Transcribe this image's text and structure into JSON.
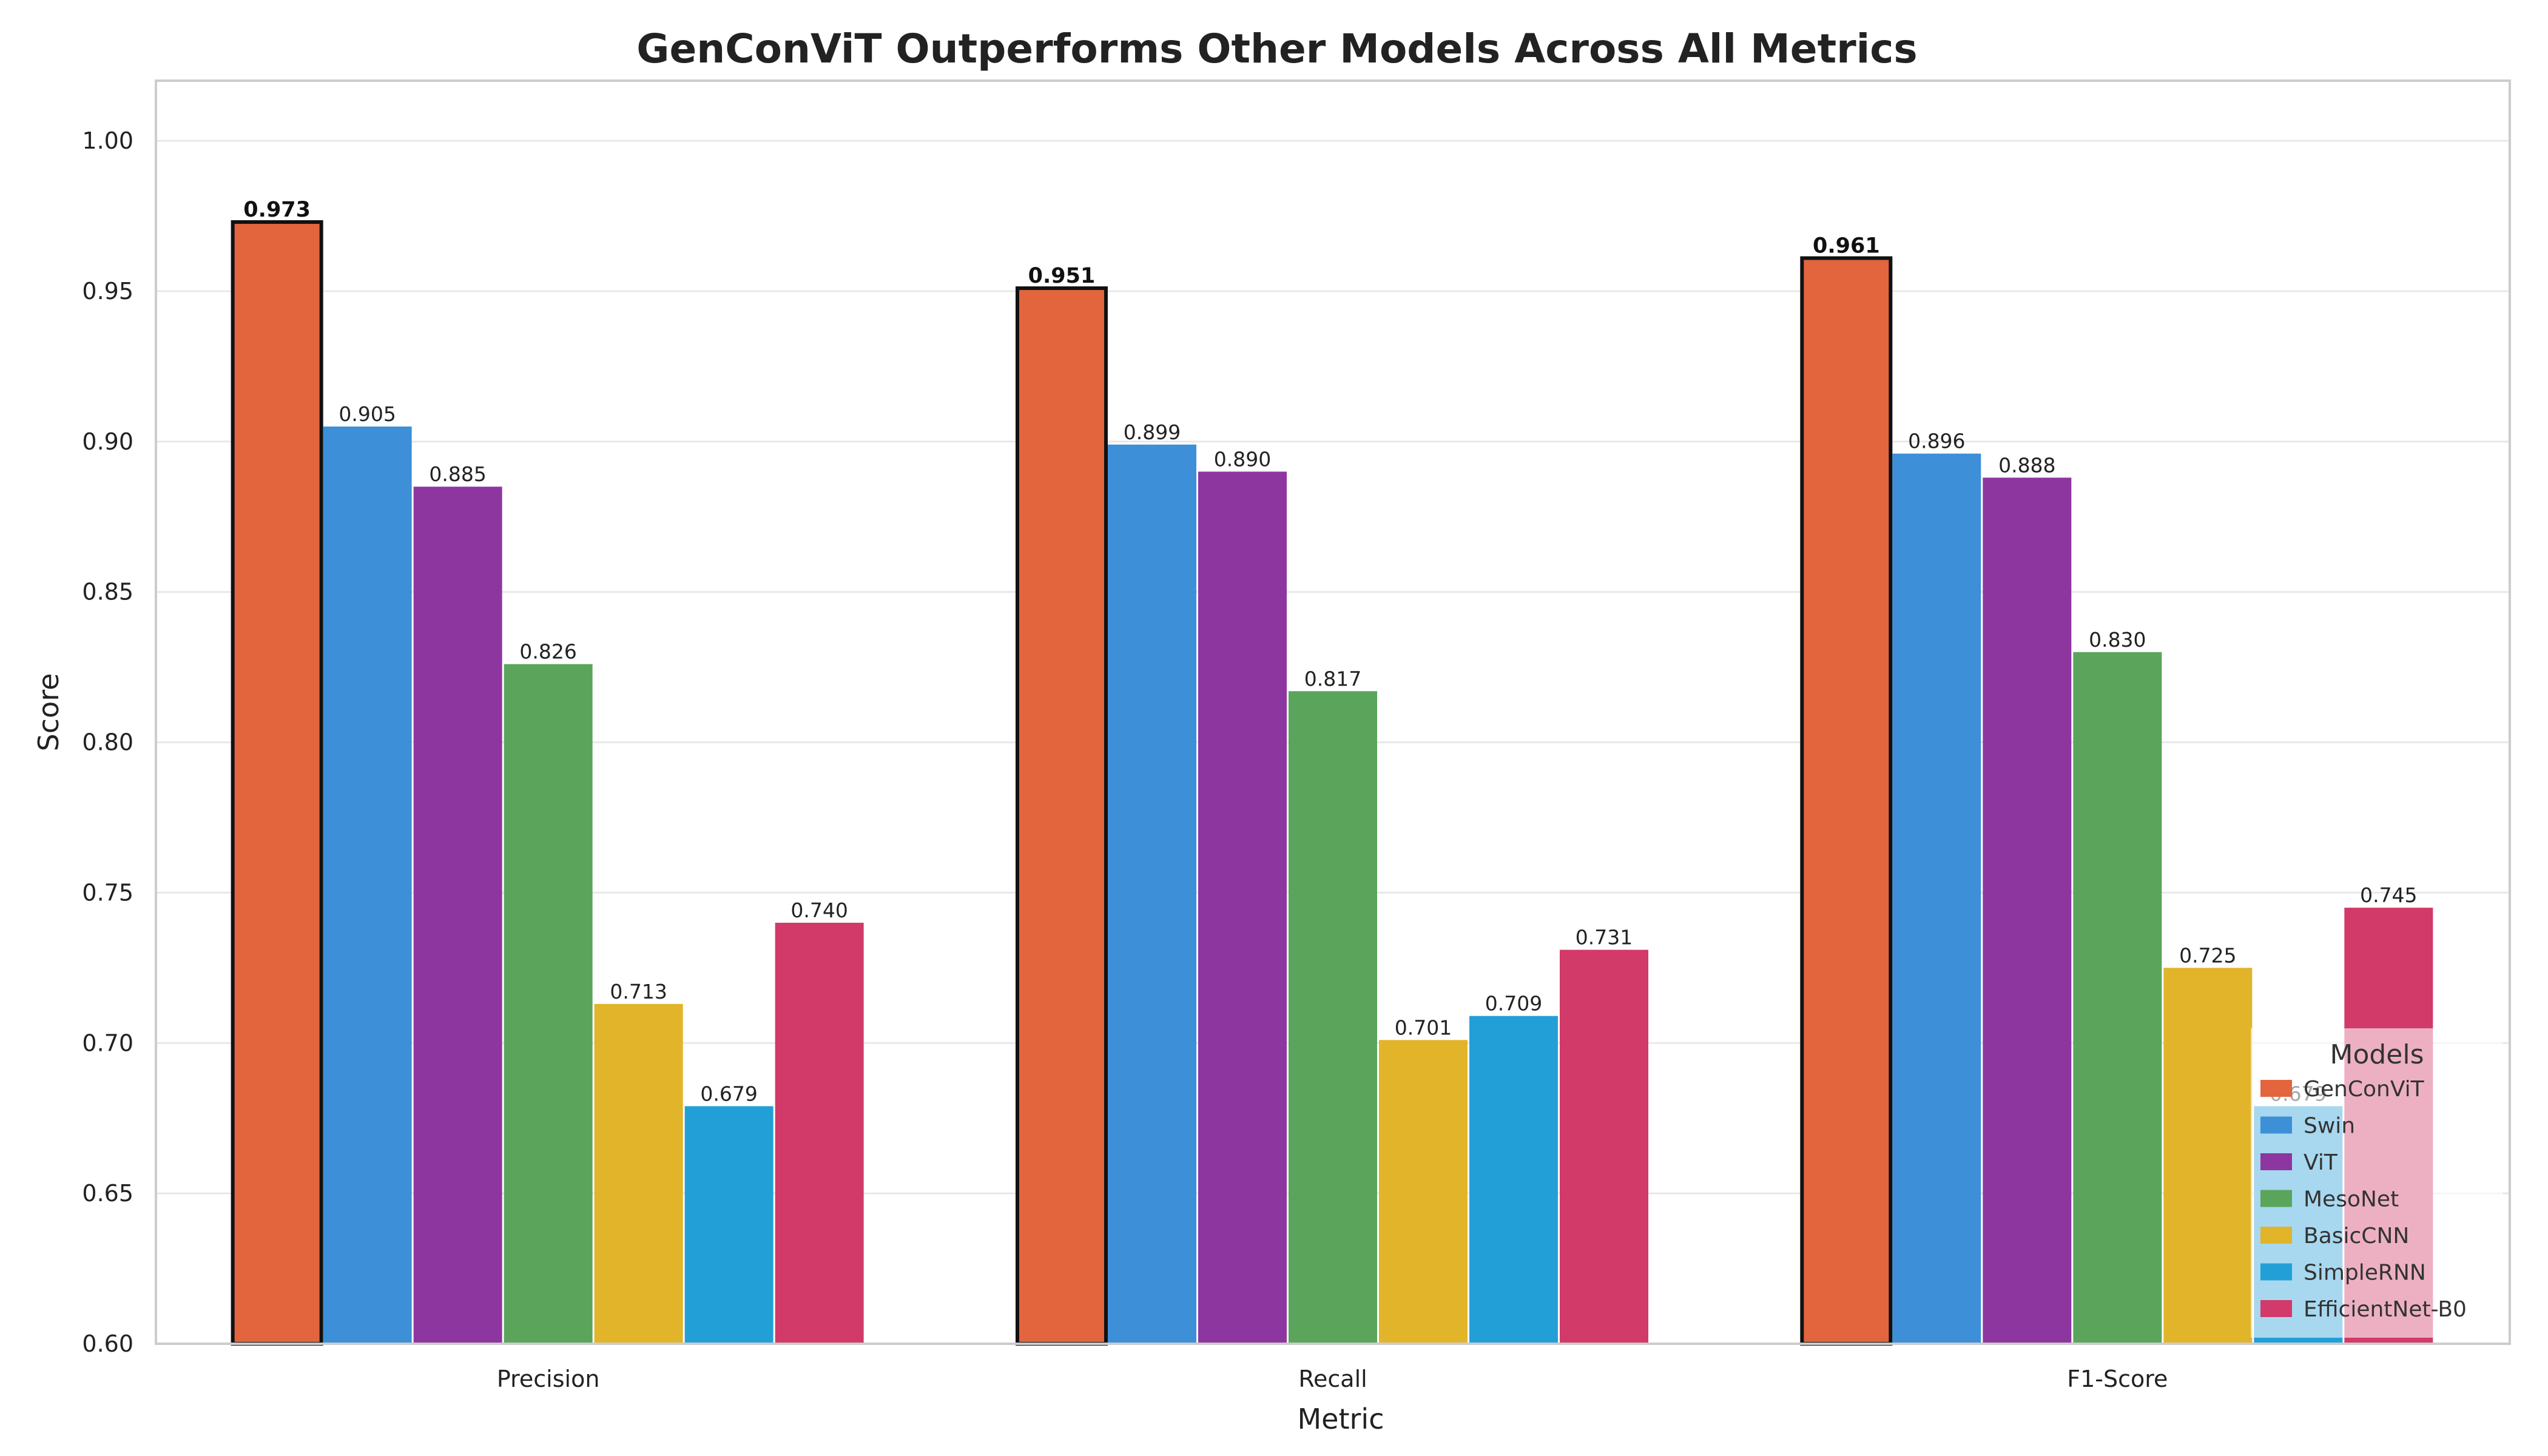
{
  "chart_data": {
    "type": "bar",
    "title": "GenConViT Outperforms Other Models Across All Metrics",
    "xlabel": "Metric",
    "ylabel": "Score",
    "ylim": [
      0.6,
      1.02
    ],
    "yticks": [
      "0.60",
      "0.65",
      "0.70",
      "0.75",
      "0.80",
      "0.85",
      "0.90",
      "0.95",
      "1.00"
    ],
    "grid": true,
    "categories": [
      "Precision",
      "Recall",
      "F1-Score"
    ],
    "series": [
      {
        "name": "GenConViT",
        "color": "#e2653e",
        "highlight": true,
        "values": [
          0.973,
          0.951,
          0.961
        ],
        "labels": [
          "0.973",
          "0.951",
          "0.961"
        ]
      },
      {
        "name": "Swin",
        "color": "#3d8fd8",
        "values": [
          0.905,
          0.899,
          0.896
        ],
        "labels": [
          "0.905",
          "0.899",
          "0.896"
        ]
      },
      {
        "name": "ViT",
        "color": "#8e36a0",
        "values": [
          0.885,
          0.89,
          0.888
        ],
        "labels": [
          "0.885",
          "0.890",
          "0.888"
        ]
      },
      {
        "name": "MesoNet",
        "color": "#5aa55b",
        "values": [
          0.826,
          0.817,
          0.83
        ],
        "labels": [
          "0.826",
          "0.817",
          "0.830"
        ]
      },
      {
        "name": "BasicCNN",
        "color": "#e1b42a",
        "values": [
          0.713,
          0.701,
          0.725
        ],
        "labels": [
          "0.713",
          "0.701",
          "0.725"
        ]
      },
      {
        "name": "SimpleRNN",
        "color": "#239fd8",
        "values": [
          0.679,
          0.709,
          0.679
        ],
        "labels": [
          "0.679",
          "0.709",
          "0.679"
        ]
      },
      {
        "name": "EfficientNet-B0",
        "color": "#d23a69",
        "values": [
          0.74,
          0.731,
          0.745
        ],
        "labels": [
          "0.740",
          "0.731",
          "0.745"
        ]
      }
    ],
    "legend": {
      "title": "Models",
      "placement": "lower-right"
    }
  }
}
